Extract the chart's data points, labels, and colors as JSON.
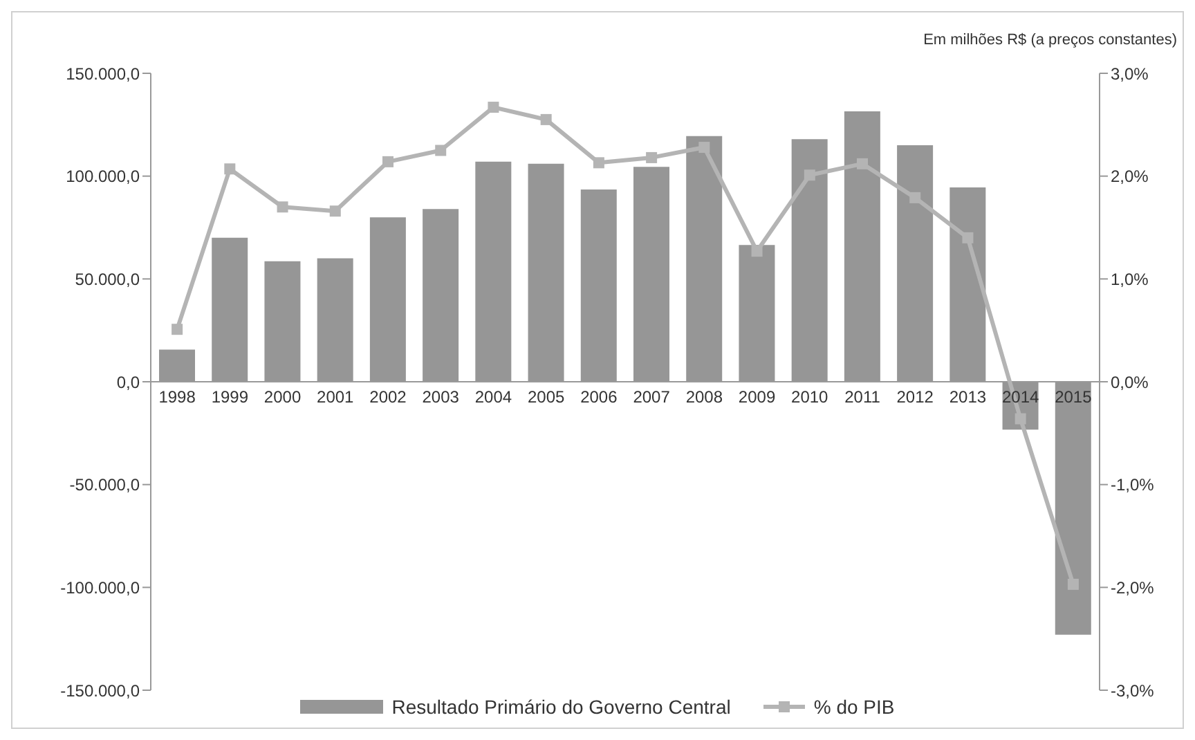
{
  "chart_data": {
    "type": "bar",
    "categories": [
      "1998",
      "1999",
      "2000",
      "2001",
      "2002",
      "2003",
      "2004",
      "2005",
      "2006",
      "2007",
      "2008",
      "2009",
      "2010",
      "2011",
      "2012",
      "2013",
      "2014",
      "2015"
    ],
    "series": [
      {
        "name": "Resultado Primário do Governo Central",
        "color": "#969696",
        "values": [
          15600,
          70000,
          58600,
          60000,
          80000,
          84000,
          107000,
          106000,
          93500,
          104500,
          119500,
          66500,
          118000,
          131500,
          115000,
          94500,
          -23300,
          -123000
        ]
      },
      {
        "name": "% do PIB",
        "type": "line",
        "axis": "y2",
        "color": "#b4b4b4",
        "values": [
          0.51,
          2.07,
          1.7,
          1.66,
          2.14,
          2.25,
          2.67,
          2.55,
          2.13,
          2.18,
          2.28,
          1.27,
          2.01,
          2.12,
          1.79,
          1.4,
          -0.36,
          -1.97
        ]
      }
    ],
    "ylim": [
      -150000,
      150000
    ],
    "yticks": [
      {
        "value": -150000,
        "label": "-150.000,0"
      },
      {
        "value": -100000,
        "label": "-100.000,0"
      },
      {
        "value": -50000,
        "label": "-50.000,0"
      },
      {
        "value": 0,
        "label": "0,0"
      },
      {
        "value": 50000,
        "label": "50.000,0"
      },
      {
        "value": 100000,
        "label": "100.000,0"
      },
      {
        "value": 150000,
        "label": "150.000,0"
      }
    ],
    "y2lim": [
      -3,
      3
    ],
    "y2ticks": [
      {
        "value": -3,
        "label": "-3,0%"
      },
      {
        "value": -2,
        "label": "-2,0%"
      },
      {
        "value": -1,
        "label": "-1,0%"
      },
      {
        "value": 0,
        "label": "0,0%"
      },
      {
        "value": 1,
        "label": "1,0%"
      },
      {
        "value": 2,
        "label": "2,0%"
      },
      {
        "value": 3,
        "label": "3,0%"
      }
    ],
    "annotations": [
      "Em milhões R$ (a preços constantes)"
    ],
    "legend": "bottom",
    "marker": "square"
  }
}
